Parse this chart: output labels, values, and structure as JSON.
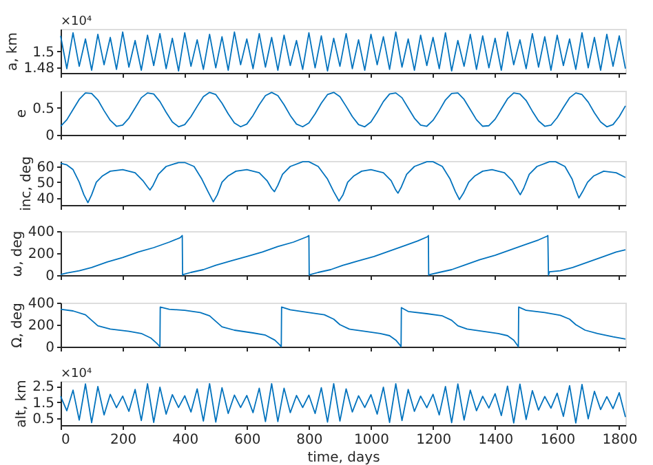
{
  "chart_data": [
    {
      "type": "line",
      "ylabel": "a, km",
      "annotations": [
        "×10⁴"
      ],
      "xlim": [
        0,
        1820
      ],
      "xticks": [
        0,
        200,
        400,
        600,
        800,
        1000,
        1200,
        1400,
        1600,
        1800
      ],
      "ylim": [
        1.4725,
        1.529
      ],
      "yticks": [
        1.48,
        1.5
      ],
      "tick_labels": "y",
      "grid": false,
      "x": [
        0,
        20,
        40,
        60,
        80,
        100,
        120,
        140,
        160,
        180,
        200,
        220,
        240,
        260,
        280,
        300,
        320,
        340,
        360,
        380,
        400,
        420,
        440,
        460,
        480,
        500,
        520,
        540,
        560,
        580,
        600,
        620,
        640,
        660,
        680,
        700,
        720,
        740,
        760,
        780,
        800,
        820,
        840,
        860,
        880,
        900,
        920,
        940,
        960,
        980,
        1000,
        1020,
        1040,
        1060,
        1080,
        1100,
        1120,
        1140,
        1160,
        1180,
        1200,
        1220,
        1240,
        1260,
        1280,
        1300,
        1320,
        1340,
        1360,
        1380,
        1400,
        1420,
        1440,
        1460,
        1480,
        1500,
        1520,
        1540,
        1560,
        1580,
        1600,
        1620,
        1640,
        1660,
        1680,
        1700,
        1720,
        1740,
        1760,
        1780,
        1800,
        1820
      ],
      "series": [
        {
          "color": "#0072bd",
          "values": [
            1.52,
            1.478,
            1.524,
            1.481,
            1.516,
            1.476,
            1.522,
            1.483,
            1.518,
            1.477,
            1.525,
            1.48,
            1.514,
            1.476,
            1.521,
            1.482,
            1.523,
            1.478,
            1.517,
            1.475,
            1.524,
            1.481,
            1.515,
            1.477,
            1.522,
            1.479,
            1.519,
            1.476,
            1.525,
            1.483,
            1.516,
            1.478,
            1.523,
            1.48,
            1.518,
            1.476,
            1.521,
            1.482,
            1.514,
            1.477,
            1.524,
            1.479,
            1.52,
            1.475,
            1.517,
            1.481,
            1.523,
            1.478,
            1.515,
            1.476,
            1.522,
            1.483,
            1.519,
            1.477,
            1.525,
            1.48,
            1.516,
            1.476,
            1.521,
            1.482,
            1.518,
            1.478,
            1.524,
            1.475,
            1.514,
            1.481,
            1.522,
            1.477,
            1.52,
            1.479,
            1.517,
            1.476,
            1.525,
            1.483,
            1.515,
            1.478,
            1.523,
            1.48,
            1.519,
            1.476,
            1.521,
            1.482,
            1.516,
            1.477,
            1.524,
            1.479,
            1.518,
            1.476,
            1.522,
            1.481,
            1.52,
            1.478
          ]
        }
      ]
    },
    {
      "type": "line",
      "ylabel": "e",
      "xlim": [
        0,
        1820
      ],
      "xticks": [
        0,
        200,
        400,
        600,
        800,
        1000,
        1200,
        1400,
        1600,
        1800
      ],
      "ylim": [
        0,
        0.82
      ],
      "yticks": [
        0,
        0.5
      ],
      "tick_labels": "y",
      "grid": false,
      "x": [
        0,
        20,
        40,
        60,
        80,
        100,
        120,
        140,
        160,
        180,
        200,
        220,
        240,
        260,
        280,
        300,
        320,
        340,
        360,
        380,
        400,
        420,
        440,
        460,
        480,
        500,
        520,
        540,
        560,
        580,
        600,
        620,
        640,
        660,
        680,
        700,
        720,
        740,
        760,
        780,
        800,
        820,
        840,
        860,
        880,
        900,
        920,
        940,
        960,
        980,
        1000,
        1020,
        1040,
        1060,
        1080,
        1100,
        1120,
        1140,
        1160,
        1180,
        1200,
        1220,
        1240,
        1260,
        1280,
        1300,
        1320,
        1340,
        1360,
        1380,
        1400,
        1420,
        1440,
        1460,
        1480,
        1500,
        1520,
        1540,
        1560,
        1580,
        1600,
        1620,
        1640,
        1660,
        1680,
        1700,
        1720,
        1740,
        1760,
        1780,
        1800,
        1820
      ],
      "series": [
        {
          "color": "#0072bd",
          "values": [
            0.16,
            0.28,
            0.47,
            0.66,
            0.78,
            0.77,
            0.65,
            0.45,
            0.27,
            0.16,
            0.18,
            0.31,
            0.5,
            0.69,
            0.78,
            0.76,
            0.62,
            0.42,
            0.24,
            0.15,
            0.19,
            0.34,
            0.53,
            0.71,
            0.79,
            0.75,
            0.59,
            0.39,
            0.22,
            0.15,
            0.2,
            0.36,
            0.56,
            0.73,
            0.79,
            0.73,
            0.56,
            0.36,
            0.2,
            0.15,
            0.22,
            0.39,
            0.59,
            0.75,
            0.79,
            0.71,
            0.53,
            0.34,
            0.19,
            0.15,
            0.24,
            0.42,
            0.62,
            0.76,
            0.78,
            0.69,
            0.5,
            0.31,
            0.18,
            0.16,
            0.27,
            0.45,
            0.65,
            0.77,
            0.78,
            0.66,
            0.47,
            0.28,
            0.16,
            0.17,
            0.29,
            0.48,
            0.67,
            0.78,
            0.76,
            0.64,
            0.44,
            0.26,
            0.16,
            0.18,
            0.32,
            0.51,
            0.69,
            0.78,
            0.75,
            0.61,
            0.41,
            0.24,
            0.15,
            0.19,
            0.34,
            0.54
          ]
        }
      ]
    },
    {
      "type": "line",
      "ylabel": "inc, deg",
      "xlim": [
        0,
        1820
      ],
      "xticks": [
        0,
        200,
        400,
        600,
        800,
        1000,
        1200,
        1400,
        1600,
        1800
      ],
      "ylim": [
        35.5,
        63.5
      ],
      "yticks": [
        40,
        50,
        60
      ],
      "tick_labels": "y",
      "grid": false,
      "x": [
        0,
        20,
        40,
        60,
        75,
        88,
        100,
        115,
        135,
        160,
        200,
        240,
        265,
        280,
        288,
        298,
        315,
        340,
        380,
        400,
        430,
        455,
        475,
        492,
        505,
        520,
        540,
        565,
        600,
        640,
        665,
        680,
        689,
        700,
        715,
        740,
        780,
        800,
        830,
        860,
        880,
        897,
        910,
        925,
        945,
        970,
        1000,
        1040,
        1065,
        1080,
        1087,
        1098,
        1115,
        1140,
        1180,
        1200,
        1230,
        1255,
        1272,
        1285,
        1298,
        1315,
        1335,
        1360,
        1390,
        1430,
        1455,
        1472,
        1481,
        1492,
        1510,
        1535,
        1575,
        1595,
        1625,
        1648,
        1660,
        1670,
        1682,
        1698,
        1718,
        1750,
        1790,
        1820
      ],
      "series": [
        {
          "color": "#0072bd",
          "values": [
            62,
            61,
            58,
            50,
            42,
            37,
            42,
            50,
            54,
            57,
            58,
            56,
            51,
            47,
            45,
            48,
            55,
            60,
            62.5,
            62.5,
            60,
            52,
            44,
            37.5,
            42,
            50,
            54,
            57,
            58,
            56,
            51,
            46,
            44,
            48,
            55,
            60,
            63,
            63,
            60,
            52,
            44,
            38,
            42,
            50,
            54,
            57,
            58,
            56,
            51,
            45,
            43,
            47,
            55,
            60,
            63,
            63,
            60,
            52,
            44,
            39,
            43,
            50,
            54,
            57,
            58,
            56,
            51,
            45,
            42,
            46,
            55,
            60,
            63,
            63,
            60,
            52,
            45,
            40,
            44,
            50,
            54,
            57,
            56,
            53
          ]
        }
      ]
    },
    {
      "type": "line",
      "ylabel": "ω, deg",
      "xlim": [
        0,
        1820
      ],
      "xticks": [
        0,
        200,
        400,
        600,
        800,
        1000,
        1200,
        1400,
        1600,
        1800
      ],
      "ylim": [
        0,
        400
      ],
      "yticks": [
        0,
        200,
        400
      ],
      "tick_labels": "y",
      "grid": false,
      "x": [
        0,
        20,
        60,
        100,
        150,
        200,
        250,
        300,
        350,
        385,
        392,
        393,
        395,
        420,
        460,
        500,
        550,
        600,
        650,
        700,
        750,
        795,
        800,
        801,
        805,
        830,
        870,
        910,
        960,
        1010,
        1060,
        1110,
        1150,
        1183,
        1185,
        1186,
        1190,
        1220,
        1260,
        1300,
        1350,
        1400,
        1450,
        1500,
        1540,
        1568,
        1570,
        1572,
        1575,
        1610,
        1650,
        1700,
        1750,
        1790,
        1820
      ],
      "series": [
        {
          "color": "#0072bd",
          "values": [
            5,
            20,
            40,
            70,
            120,
            160,
            210,
            250,
            300,
            340,
            360,
            0,
            5,
            25,
            50,
            90,
            130,
            170,
            210,
            260,
            300,
            350,
            360,
            0,
            5,
            25,
            50,
            90,
            130,
            170,
            220,
            270,
            310,
            350,
            360,
            0,
            5,
            25,
            50,
            90,
            140,
            180,
            230,
            280,
            320,
            355,
            360,
            0,
            30,
            40,
            70,
            120,
            170,
            210,
            230
          ]
        }
      ]
    },
    {
      "type": "line",
      "ylabel": "Ω, deg",
      "xlim": [
        0,
        1820
      ],
      "xticks": [
        0,
        200,
        400,
        600,
        800,
        1000,
        1200,
        1400,
        1600,
        1800
      ],
      "ylim": [
        0,
        400
      ],
      "yticks": [
        0,
        200,
        400
      ],
      "tick_labels": "y",
      "grid": false,
      "x": [
        0,
        40,
        80,
        100,
        120,
        160,
        220,
        260,
        290,
        310,
        320,
        321,
        350,
        400,
        450,
        480,
        500,
        520,
        560,
        620,
        660,
        690,
        705,
        711,
        712,
        740,
        800,
        850,
        880,
        900,
        930,
        980,
        1030,
        1060,
        1080,
        1092,
        1097,
        1098,
        1120,
        1180,
        1230,
        1260,
        1280,
        1310,
        1360,
        1410,
        1440,
        1460,
        1470,
        1475,
        1476,
        1500,
        1560,
        1610,
        1640,
        1660,
        1690,
        1730,
        1780,
        1820
      ],
      "series": [
        {
          "color": "#0072bd",
          "values": [
            340,
            325,
            290,
            240,
            190,
            160,
            140,
            120,
            80,
            30,
            0,
            360,
            340,
            330,
            310,
            280,
            230,
            180,
            150,
            125,
            105,
            60,
            20,
            0,
            360,
            335,
            310,
            290,
            250,
            200,
            160,
            140,
            120,
            100,
            60,
            20,
            0,
            355,
            320,
            300,
            280,
            240,
            190,
            160,
            140,
            120,
            100,
            60,
            20,
            0,
            360,
            330,
            310,
            285,
            250,
            200,
            150,
            120,
            90,
            70
          ]
        }
      ]
    },
    {
      "type": "line",
      "ylabel": "alt, km",
      "xlabel": "time, days",
      "annotations": [
        "×10⁴"
      ],
      "xlim": [
        0,
        1820
      ],
      "xticks": [
        0,
        200,
        400,
        600,
        800,
        1000,
        1200,
        1400,
        1600,
        1800
      ],
      "ylim": [
        0.09,
        2.81
      ],
      "yticks": [
        0.5,
        1.5,
        2.5
      ],
      "grid": false,
      "x": [
        0,
        20,
        40,
        60,
        80,
        100,
        120,
        140,
        160,
        180,
        200,
        220,
        240,
        260,
        280,
        300,
        320,
        340,
        360,
        380,
        400,
        420,
        440,
        460,
        480,
        500,
        520,
        540,
        560,
        580,
        600,
        620,
        640,
        660,
        680,
        700,
        720,
        740,
        760,
        780,
        800,
        820,
        840,
        860,
        880,
        900,
        920,
        940,
        960,
        980,
        1000,
        1020,
        1040,
        1060,
        1080,
        1100,
        1120,
        1140,
        1160,
        1180,
        1200,
        1220,
        1240,
        1260,
        1280,
        1300,
        1320,
        1340,
        1360,
        1380,
        1400,
        1420,
        1440,
        1460,
        1480,
        1500,
        1520,
        1540,
        1560,
        1580,
        1600,
        1620,
        1640,
        1660,
        1680,
        1700,
        1720,
        1740,
        1760,
        1780,
        1800,
        1820
      ],
      "series": [
        {
          "color": "#0072bd",
          "values": [
            1.87,
            0.98,
            2.25,
            0.4,
            2.63,
            0.24,
            2.47,
            0.72,
            1.99,
            1.17,
            1.88,
            0.94,
            2.29,
            0.37,
            2.64,
            0.26,
            2.43,
            0.77,
            1.97,
            1.18,
            1.9,
            0.9,
            2.33,
            0.34,
            2.65,
            0.28,
            2.4,
            0.81,
            1.94,
            1.18,
            1.92,
            0.86,
            2.37,
            0.31,
            2.65,
            0.31,
            2.37,
            0.86,
            1.92,
            1.18,
            1.94,
            0.81,
            2.4,
            0.28,
            2.65,
            0.34,
            2.33,
            0.9,
            1.9,
            1.18,
            1.97,
            0.77,
            2.43,
            0.26,
            2.64,
            0.37,
            2.29,
            0.94,
            1.88,
            1.17,
            1.99,
            0.72,
            2.47,
            0.24,
            2.63,
            0.4,
            2.25,
            0.98,
            1.87,
            1.15,
            2.03,
            0.68,
            2.5,
            0.22,
            2.62,
            0.44,
            2.22,
            1.02,
            1.86,
            1.14,
            2.06,
            0.63,
            2.53,
            0.22,
            2.6,
            0.48,
            2.18,
            1.05,
            1.85,
            1.11,
            2.09,
            0.59
          ]
        }
      ]
    }
  ]
}
